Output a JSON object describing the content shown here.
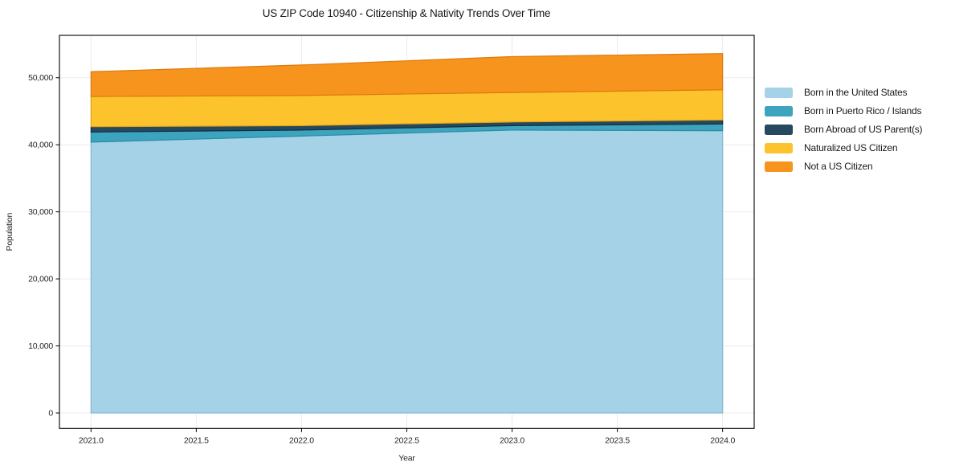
{
  "title": "US ZIP Code 10940 - Citizenship & Nativity Trends Over Time",
  "chart_data": {
    "type": "area",
    "stacked": true,
    "title": "US ZIP Code 10940 - Citizenship & Nativity Trends Over Time",
    "xlabel": "Year",
    "ylabel": "Population",
    "x": [
      2021,
      2022,
      2023,
      2024
    ],
    "series": [
      {
        "name": "Born in the United States",
        "values": [
          40400,
          41300,
          42200,
          42100
        ],
        "color": "#A6D2E8",
        "edge": "#82B8D6"
      },
      {
        "name": "Born in Puerto Rico / Islands",
        "values": [
          1500,
          900,
          650,
          1000
        ],
        "color": "#3CA4BE",
        "edge": "#2B8BA3"
      },
      {
        "name": "Born Abroad of US Parent(s)",
        "values": [
          800,
          650,
          550,
          600
        ],
        "color": "#25495E",
        "edge": "#142F3F"
      },
      {
        "name": "Naturalized US Citizen",
        "values": [
          4500,
          4500,
          4400,
          4500
        ],
        "color": "#FCC32D",
        "edge": "#E2A416"
      },
      {
        "name": "Not a US Citizen",
        "values": [
          3700,
          4550,
          5350,
          5400
        ],
        "color": "#F6941E",
        "edge": "#DD7A0E"
      }
    ],
    "xticks": {
      "values": [
        2021.0,
        2021.5,
        2022.0,
        2022.5,
        2023.0,
        2023.5,
        2024.0
      ],
      "labels": [
        "2021.0",
        "2021.5",
        "2022.0",
        "2022.5",
        "2023.0",
        "2023.5",
        "2024.0"
      ]
    },
    "yticks": {
      "values": [
        0,
        10000,
        20000,
        30000,
        40000,
        50000
      ],
      "labels": [
        "0",
        "10,000",
        "20,000",
        "30,000",
        "40,000",
        "50,000"
      ]
    },
    "xlim": [
      2020.85,
      2024.15
    ],
    "ylim": [
      -2310,
      56320
    ],
    "grid": true,
    "grid_color": "#EBEBEB",
    "frame_color": "#000000",
    "legend_position": "right"
  }
}
